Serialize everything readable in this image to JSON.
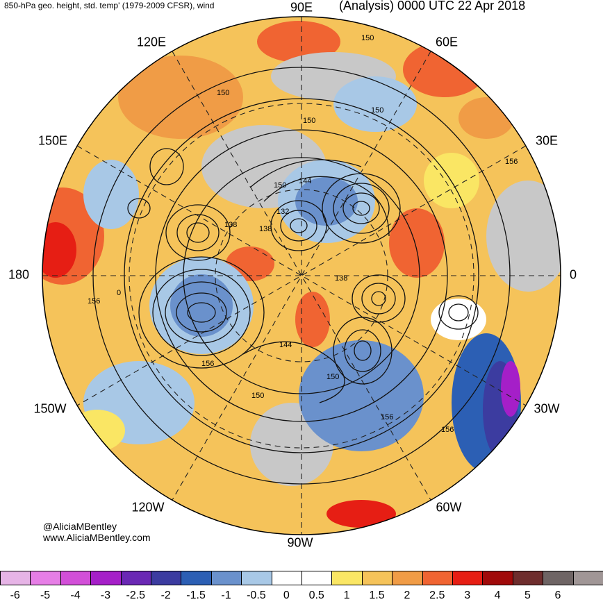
{
  "header": {
    "left_title": "850-hPa geo. height, std. temp' (1979-2009 CFSR), wind",
    "right_title": "(Analysis) 0000 UTC 22 Apr 2018"
  },
  "longitude_labels": {
    "lon_90e": "90E",
    "lon_60e": "60E",
    "lon_120e": "120E",
    "lon_30e": "30E",
    "lon_150e": "150E",
    "lon_180": "180",
    "lon_0": "0",
    "lon_150w": "150W",
    "lon_30w": "30W",
    "lon_120w": "120W",
    "lon_60w": "60W",
    "lon_90w": "90W"
  },
  "contour_labels": [
    "150",
    "150",
    "150",
    "150",
    "150",
    "144",
    "132",
    "138",
    "138",
    "138",
    "144",
    "156",
    "156",
    "156",
    "156",
    "150",
    "150",
    "156",
    "0"
  ],
  "credits": {
    "handle": "@AliciaMBentley",
    "site": "www.AliciaMBentley.com"
  },
  "colorbar": {
    "ticks": [
      "-6",
      "-5",
      "-4",
      "-3",
      "-2.5",
      "-2",
      "-1.5",
      "-1",
      "-0.5",
      "0",
      "0.5",
      "1",
      "1.5",
      "2",
      "2.5",
      "3",
      "4",
      "5",
      "6"
    ],
    "colors": [
      "#e6b4e6",
      "#e67ee6",
      "#d24fd8",
      "#a51fc8",
      "#6a28b4",
      "#3c3ca0",
      "#2c5fb4",
      "#6a91cc",
      "#a8c8e6",
      "#ffffff",
      "#ffffff",
      "#fae664",
      "#f5c35a",
      "#f09c46",
      "#f06432",
      "#e61e14",
      "#a00a0a",
      "#6e2d2d",
      "#6e6464",
      "#a09696"
    ],
    "tick_precision": "0.5 units"
  },
  "colors": {
    "cold_blue": "#6a91cc",
    "warm_orange": "#f09c46",
    "hot_red": "#e61e14",
    "neutral_gray": "#c8c8c8",
    "deep_purple": "#a51fc8"
  }
}
